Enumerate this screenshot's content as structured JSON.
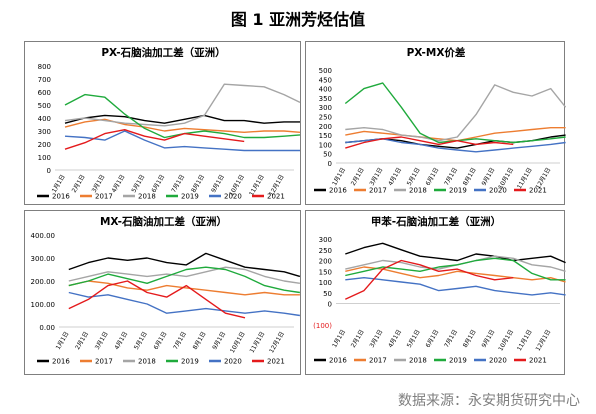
{
  "figure": {
    "title": "图 1 亚洲芳烃估值",
    "source": "数据来源：永安期货研究中心"
  },
  "colors": {
    "2016": "#000000",
    "2017": "#ed7d31",
    "2018": "#a5a5a5",
    "2019": "#1faa3c",
    "2020": "#4472c4",
    "2021": "#e41a1c"
  },
  "chart_data": [
    {
      "type": "line",
      "title": "PX-石脑油加工差（亚洲）",
      "x_ticks": [
        "1月1日",
        "2月1日",
        "3月1日",
        "4月1日",
        "5月1日",
        "6月1日",
        "7月1日",
        "8月1日",
        "9月1日",
        "10月1日",
        "11月1日",
        "12月1日"
      ],
      "y_ticks": [
        "0",
        "100",
        "200",
        "300",
        "400",
        "500",
        "600",
        "700",
        "800"
      ],
      "ylim": [
        0,
        800
      ],
      "legend_position": "bottom",
      "series": [
        {
          "name": "2016",
          "x": [
            0,
            1,
            2,
            3,
            4,
            5,
            6,
            7,
            8,
            9,
            10,
            11,
            11.8
          ],
          "values": [
            360,
            400,
            420,
            410,
            380,
            360,
            390,
            420,
            380,
            380,
            360,
            370,
            370
          ]
        },
        {
          "name": "2017",
          "x": [
            0,
            1,
            2,
            3,
            4,
            5,
            6,
            7,
            8,
            9,
            10,
            11,
            11.8
          ],
          "values": [
            330,
            370,
            390,
            350,
            330,
            300,
            320,
            310,
            300,
            290,
            300,
            300,
            290
          ]
        },
        {
          "name": "2018",
          "x": [
            0,
            1,
            2,
            3,
            4,
            5,
            6,
            7,
            8,
            9,
            10,
            11,
            11.8
          ],
          "values": [
            380,
            400,
            380,
            360,
            350,
            340,
            360,
            420,
            660,
            650,
            640,
            580,
            520
          ]
        },
        {
          "name": "2019",
          "x": [
            0,
            1,
            2,
            3,
            4,
            5,
            6,
            7,
            8,
            9,
            10,
            11,
            11.8
          ],
          "values": [
            500,
            580,
            560,
            430,
            320,
            250,
            280,
            300,
            280,
            250,
            250,
            260,
            270
          ]
        },
        {
          "name": "2020",
          "x": [
            0,
            1,
            2,
            3,
            4,
            5,
            6,
            7,
            8,
            9,
            10,
            11,
            11.8
          ],
          "values": [
            260,
            250,
            230,
            300,
            230,
            170,
            180,
            170,
            160,
            150,
            150,
            150,
            150
          ]
        },
        {
          "name": "2021",
          "x": [
            0,
            1,
            2,
            3,
            4,
            5,
            6,
            7,
            8,
            9
          ],
          "values": [
            160,
            210,
            280,
            310,
            260,
            230,
            280,
            260,
            240,
            220
          ]
        }
      ]
    },
    {
      "type": "line",
      "title": "PX-MX价差",
      "x_ticks": [
        "1月1日",
        "2月1日",
        "3月1日",
        "4月1日",
        "5月1日",
        "6月1日",
        "7月1日",
        "8月1日",
        "9月1日",
        "10月1日",
        "11月1日",
        "12月1日"
      ],
      "y_ticks": [
        "0",
        "50",
        "100",
        "150",
        "200",
        "250",
        "300",
        "350",
        "400",
        "450",
        "500"
      ],
      "ylim": [
        0,
        500
      ],
      "legend_position": "bottom",
      "series": [
        {
          "name": "2016",
          "x": [
            0,
            1,
            2,
            3,
            4,
            5,
            6,
            7,
            8,
            9,
            10,
            11,
            11.8
          ],
          "values": [
            110,
            120,
            130,
            120,
            100,
            90,
            80,
            100,
            120,
            110,
            120,
            140,
            150
          ]
        },
        {
          "name": "2017",
          "x": [
            0,
            1,
            2,
            3,
            4,
            5,
            6,
            7,
            8,
            9,
            10,
            11,
            11.8
          ],
          "values": [
            150,
            170,
            160,
            150,
            140,
            130,
            120,
            140,
            160,
            170,
            180,
            190,
            190
          ]
        },
        {
          "name": "2018",
          "x": [
            0,
            1,
            2,
            3,
            4,
            5,
            6,
            7,
            8,
            9,
            10,
            11,
            11.8
          ],
          "values": [
            180,
            190,
            180,
            150,
            140,
            120,
            140,
            260,
            420,
            380,
            360,
            400,
            300
          ]
        },
        {
          "name": "2019",
          "x": [
            0,
            1,
            2,
            3,
            4,
            5,
            6,
            7,
            8,
            9,
            10,
            11,
            11.8
          ],
          "values": [
            320,
            400,
            430,
            300,
            160,
            110,
            120,
            130,
            120,
            110,
            120,
            130,
            140
          ]
        },
        {
          "name": "2020",
          "x": [
            0,
            1,
            2,
            3,
            4,
            5,
            6,
            7,
            8,
            9,
            10,
            11,
            11.8
          ],
          "values": [
            110,
            120,
            130,
            110,
            100,
            80,
            70,
            60,
            70,
            80,
            90,
            100,
            110
          ]
        },
        {
          "name": "2021",
          "x": [
            0,
            1,
            2,
            3,
            4,
            5,
            6,
            7,
            8,
            9
          ],
          "values": [
            80,
            110,
            130,
            140,
            120,
            100,
            120,
            100,
            110,
            100
          ]
        }
      ]
    },
    {
      "type": "line",
      "title": "MX-石脑油加工差（亚洲）",
      "x_ticks": [
        "1月1日",
        "2月1日",
        "3月1日",
        "4月1日",
        "5月1日",
        "6月1日",
        "7月1日",
        "8月1日",
        "9月1日",
        "10月1日",
        "11月1日",
        "12月1日"
      ],
      "y_ticks": [
        "0.00",
        "100.00",
        "200.00",
        "300.00",
        "400.00"
      ],
      "ylim": [
        0,
        400
      ],
      "legend_position": "bottom",
      "series": [
        {
          "name": "2016",
          "x": [
            0,
            1,
            2,
            3,
            4,
            5,
            6,
            7,
            8,
            9,
            10,
            11,
            11.8
          ],
          "values": [
            250,
            280,
            300,
            290,
            300,
            280,
            270,
            320,
            290,
            260,
            250,
            240,
            220
          ]
        },
        {
          "name": "2017",
          "x": [
            0,
            1,
            2,
            3,
            4,
            5,
            6,
            7,
            8,
            9,
            10,
            11,
            11.8
          ],
          "values": [
            180,
            200,
            190,
            170,
            160,
            180,
            170,
            160,
            150,
            140,
            150,
            140,
            140
          ]
        },
        {
          "name": "2018",
          "x": [
            0,
            1,
            2,
            3,
            4,
            5,
            6,
            7,
            8,
            9,
            10,
            11,
            11.8
          ],
          "values": [
            200,
            220,
            240,
            230,
            220,
            230,
            220,
            240,
            260,
            250,
            220,
            200,
            190
          ]
        },
        {
          "name": "2019",
          "x": [
            0,
            1,
            2,
            3,
            4,
            5,
            6,
            7,
            8,
            9,
            10,
            11,
            11.8
          ],
          "values": [
            180,
            200,
            230,
            210,
            190,
            220,
            250,
            260,
            250,
            220,
            180,
            160,
            150
          ]
        },
        {
          "name": "2020",
          "x": [
            0,
            1,
            2,
            3,
            4,
            5,
            6,
            7,
            8,
            9,
            10,
            11,
            11.8
          ],
          "values": [
            150,
            130,
            140,
            120,
            100,
            60,
            70,
            80,
            70,
            60,
            70,
            60,
            50
          ]
        },
        {
          "name": "2021",
          "x": [
            0,
            1,
            2,
            3,
            4,
            5,
            6,
            7,
            8,
            9
          ],
          "values": [
            80,
            120,
            180,
            200,
            150,
            130,
            180,
            120,
            60,
            40
          ]
        }
      ]
    },
    {
      "type": "line",
      "title": "甲苯-石脑油加工差（亚洲）",
      "x_ticks": [
        "1月1日",
        "2月1日",
        "3月1日",
        "4月1日",
        "5月1日",
        "6月1日",
        "7月1日",
        "8月1日",
        "9月1日",
        "10月1日",
        "11月1日",
        "12月1日"
      ],
      "y_ticks": [
        "(100)",
        "0",
        "50",
        "100",
        "150",
        "200",
        "250",
        "300"
      ],
      "y_values": [
        -100,
        0,
        50,
        100,
        150,
        200,
        250,
        300
      ],
      "ylim": [
        -100,
        300
      ],
      "legend_position": "bottom",
      "series": [
        {
          "name": "2016",
          "x": [
            0,
            1,
            2,
            3,
            4,
            5,
            6,
            7,
            8,
            9,
            10,
            11,
            11.8
          ],
          "values": [
            230,
            260,
            280,
            250,
            220,
            210,
            200,
            230,
            220,
            200,
            210,
            220,
            190
          ]
        },
        {
          "name": "2017",
          "x": [
            0,
            1,
            2,
            3,
            4,
            5,
            6,
            7,
            8,
            9,
            10,
            11,
            11.8
          ],
          "values": [
            150,
            170,
            160,
            140,
            120,
            130,
            150,
            140,
            130,
            120,
            110,
            120,
            100
          ]
        },
        {
          "name": "2018",
          "x": [
            0,
            1,
            2,
            3,
            4,
            5,
            6,
            7,
            8,
            9,
            10,
            11,
            11.8
          ],
          "values": [
            160,
            180,
            200,
            190,
            170,
            160,
            180,
            200,
            220,
            210,
            180,
            170,
            150
          ]
        },
        {
          "name": "2019",
          "x": [
            0,
            1,
            2,
            3,
            4,
            5,
            6,
            7,
            8,
            9,
            10,
            11,
            11.8
          ],
          "values": [
            130,
            150,
            170,
            160,
            150,
            170,
            180,
            200,
            210,
            200,
            140,
            110,
            110
          ]
        },
        {
          "name": "2020",
          "x": [
            0,
            1,
            2,
            3,
            4,
            5,
            6,
            7,
            8,
            9,
            10,
            11,
            11.8
          ],
          "values": [
            110,
            120,
            110,
            100,
            90,
            60,
            70,
            80,
            60,
            50,
            40,
            50,
            40
          ]
        },
        {
          "name": "2021",
          "x": [
            0,
            1,
            2,
            3,
            4,
            5,
            6,
            7,
            8,
            9
          ],
          "values": [
            20,
            60,
            160,
            200,
            180,
            150,
            160,
            130,
            110,
            120
          ]
        }
      ]
    }
  ]
}
